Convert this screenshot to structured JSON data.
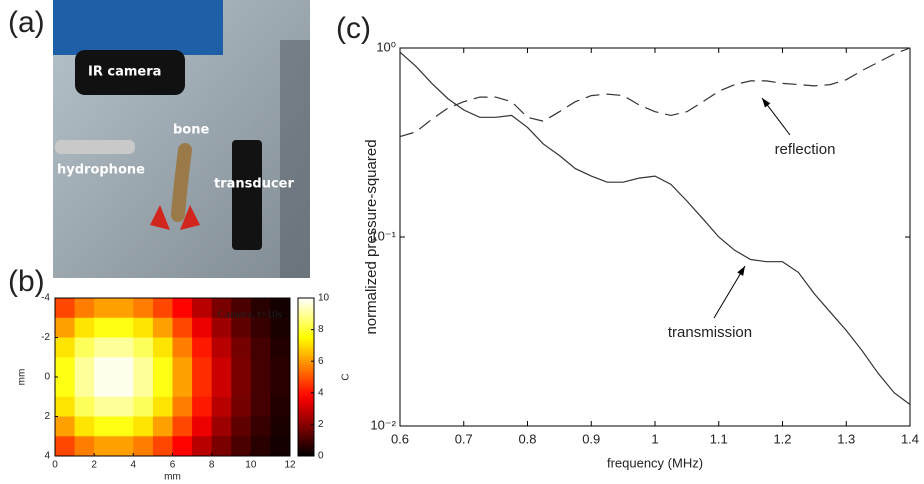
{
  "photo": {
    "panel_label": "(a)",
    "labels": [
      "IR camera",
      "bone",
      "hydrophone",
      "transducer"
    ]
  },
  "chart_data": [
    {
      "type": "heatmap",
      "panel_label": "(b)",
      "title": "Camera, t=10s",
      "x_label": "mm",
      "y_label": "mm",
      "colorbar_label": "C",
      "x": [
        0.5,
        1.5,
        2.5,
        3.5,
        4.5,
        5.5,
        6.5,
        7.5,
        8.5,
        9.5,
        10.5,
        11.5
      ],
      "y": [
        -3.5,
        -2.5,
        -1.5,
        -0.5,
        0.5,
        1.5,
        2.5,
        3.5
      ],
      "values": [
        [
          4.8,
          5.6,
          6.1,
          6.1,
          5.6,
          4.8,
          3.8,
          2.7,
          1.8,
          1.1,
          0.6,
          0.3
        ],
        [
          6.1,
          7.1,
          7.7,
          7.7,
          7.1,
          6.1,
          4.8,
          3.5,
          2.3,
          1.4,
          0.8,
          0.4
        ],
        [
          7.1,
          8.4,
          9.0,
          9.0,
          8.4,
          7.1,
          5.6,
          4.1,
          2.7,
          1.7,
          1.0,
          0.5
        ],
        [
          7.7,
          9.0,
          9.8,
          9.8,
          9.0,
          7.7,
          6.1,
          4.4,
          3.0,
          1.8,
          1.0,
          0.6
        ],
        [
          7.7,
          9.0,
          9.8,
          9.8,
          9.0,
          7.7,
          6.1,
          4.4,
          3.0,
          1.8,
          1.0,
          0.6
        ],
        [
          7.1,
          8.4,
          9.0,
          9.0,
          8.4,
          7.1,
          5.6,
          4.1,
          2.7,
          1.7,
          1.0,
          0.5
        ],
        [
          6.1,
          7.1,
          7.7,
          7.7,
          7.1,
          6.1,
          4.8,
          3.5,
          2.3,
          1.4,
          0.8,
          0.4
        ],
        [
          4.8,
          5.6,
          6.1,
          6.1,
          5.6,
          4.8,
          3.8,
          2.7,
          1.8,
          1.1,
          0.6,
          0.3
        ]
      ],
      "xlim": [
        0,
        12
      ],
      "xticks": [
        0,
        2,
        4,
        6,
        8,
        10,
        12
      ],
      "ylim": [
        -4,
        4
      ],
      "yticks": [
        -4,
        -2,
        0,
        2,
        4
      ],
      "y_inverted": true,
      "clim": [
        0,
        10
      ],
      "cticks": [
        0,
        2,
        4,
        6,
        8,
        10
      ],
      "colormap": "hot"
    },
    {
      "type": "line",
      "panel_label": "(c)",
      "x_label": "frequency (MHz)",
      "y_label": "normalized pressure-squared",
      "x": [
        0.6,
        0.625,
        0.65,
        0.675,
        0.7,
        0.725,
        0.75,
        0.775,
        0.8,
        0.825,
        0.85,
        0.875,
        0.9,
        0.925,
        0.95,
        0.975,
        1.0,
        1.025,
        1.05,
        1.075,
        1.1,
        1.125,
        1.15,
        1.175,
        1.2,
        1.225,
        1.25,
        1.275,
        1.3,
        1.325,
        1.35,
        1.375,
        1.4
      ],
      "series": [
        {
          "name": "transmission",
          "color": "#333333",
          "dash": "solid",
          "values": [
            0.95,
            0.8,
            0.65,
            0.54,
            0.47,
            0.43,
            0.43,
            0.44,
            0.38,
            0.31,
            0.27,
            0.23,
            0.21,
            0.195,
            0.195,
            0.205,
            0.21,
            0.19,
            0.155,
            0.125,
            0.1,
            0.085,
            0.076,
            0.074,
            0.074,
            0.065,
            0.05,
            0.04,
            0.032,
            0.025,
            0.019,
            0.015,
            0.013
          ]
        },
        {
          "name": "reflection",
          "color": "#333333",
          "dash": "dashed",
          "values": [
            0.34,
            0.36,
            0.42,
            0.48,
            0.52,
            0.55,
            0.55,
            0.52,
            0.43,
            0.41,
            0.46,
            0.52,
            0.56,
            0.57,
            0.56,
            0.5,
            0.46,
            0.44,
            0.46,
            0.52,
            0.59,
            0.64,
            0.67,
            0.67,
            0.65,
            0.64,
            0.63,
            0.64,
            0.68,
            0.76,
            0.84,
            0.93,
            1.0
          ]
        }
      ],
      "xlim": [
        0.6,
        1.4
      ],
      "xticks": [
        0.6,
        0.7,
        0.8,
        0.9,
        1,
        1.1,
        1.2,
        1.3,
        1.4
      ],
      "ylim": [
        0.01,
        1
      ],
      "yticks": [
        {
          "value": 0.01,
          "label": "10⁻²"
        },
        {
          "value": 0.1,
          "label": "10⁻¹"
        },
        {
          "value": 1,
          "label": "10⁰"
        }
      ],
      "log_y": true,
      "legend": false
    }
  ]
}
